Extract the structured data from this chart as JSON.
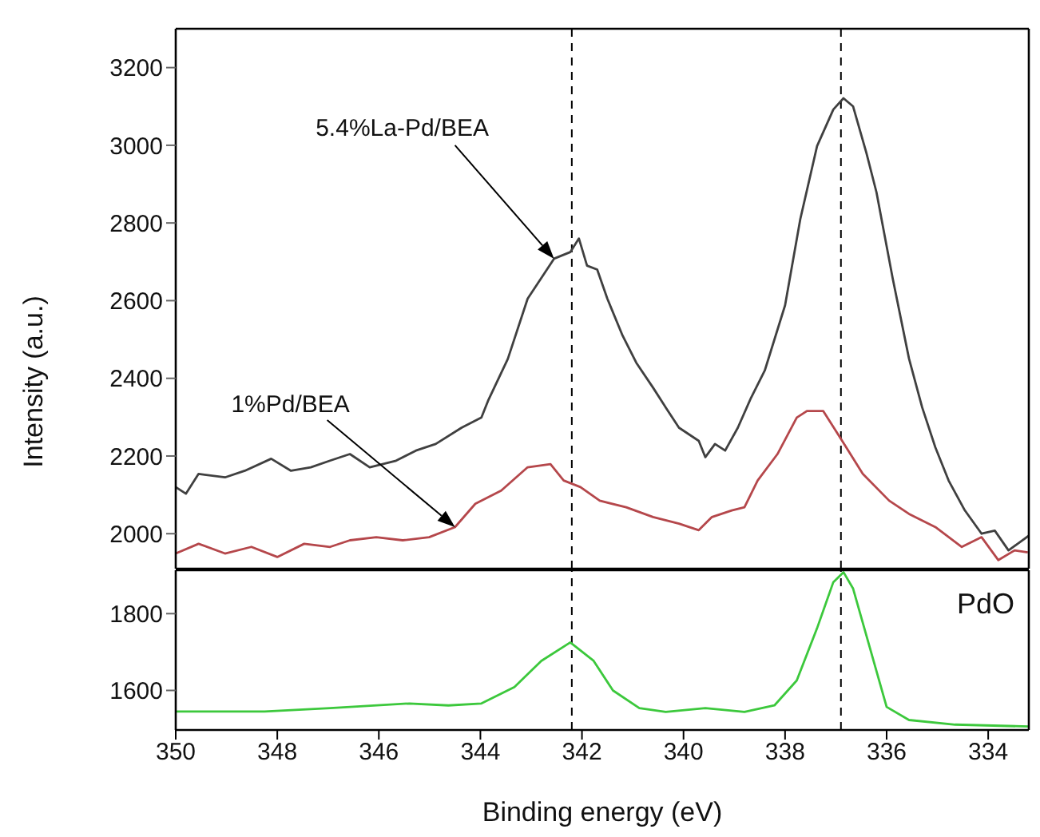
{
  "chart_data": [
    {
      "type": "line",
      "ylabel": "Intensity (a.u.)",
      "xlim": [
        350,
        333.2
      ],
      "xticks": [
        350,
        348,
        346,
        344,
        342,
        340,
        338,
        336,
        334
      ],
      "ylim": [
        1910,
        3300
      ],
      "yticks": [
        2000,
        2200,
        2400,
        2600,
        2800,
        3000,
        3200
      ],
      "tick_labels": "y",
      "series": [
        {
          "color": "#404040",
          "x": [
            350,
            349.8,
            349.55,
            349.03,
            348.64,
            348.12,
            347.73,
            347.34,
            346.96,
            346.57,
            346.18,
            345.66,
            345.27,
            344.88,
            344.37,
            343.98,
            343.85,
            343.46,
            343.07,
            342.55,
            342.23,
            342.06,
            341.9,
            341.7,
            341.5,
            341.2,
            340.93,
            340.6,
            340.35,
            340.09,
            339.7,
            339.57,
            339.38,
            339.18,
            338.93,
            338.67,
            338.4,
            338.0,
            337.7,
            337.37,
            337.05,
            336.85,
            336.66,
            336.4,
            336.2,
            335.88,
            335.56,
            335.3,
            335.04,
            334.78,
            334.46,
            334.13,
            333.87,
            333.6,
            333.42,
            333.2
          ],
          "values": [
            2120,
            2103,
            2154,
            2145,
            2162,
            2193,
            2162,
            2171,
            2188,
            2205,
            2171,
            2188,
            2214,
            2231,
            2273,
            2299,
            2342,
            2450,
            2605,
            2708,
            2725,
            2760,
            2690,
            2680,
            2605,
            2510,
            2440,
            2376,
            2325,
            2273,
            2239,
            2197,
            2231,
            2214,
            2273,
            2350,
            2420,
            2588,
            2810,
            2998,
            3092,
            3121,
            3100,
            2981,
            2879,
            2657,
            2451,
            2325,
            2222,
            2137,
            2060,
            2000,
            2008,
            1957,
            1974,
            1995
          ]
        },
        {
          "color": "#b5474b",
          "x": [
            350,
            349.55,
            349.03,
            348.51,
            348.0,
            347.47,
            346.96,
            346.57,
            346.05,
            345.53,
            345.01,
            344.5,
            344.1,
            343.59,
            343.07,
            342.62,
            342.36,
            342.03,
            341.65,
            341.13,
            340.6,
            340.09,
            339.7,
            339.44,
            339.05,
            338.8,
            338.54,
            338.15,
            337.77,
            337.57,
            337.25,
            336.92,
            336.47,
            335.95,
            335.56,
            335.04,
            334.52,
            334.13,
            333.8,
            333.48,
            333.22
          ],
          "values": [
            1949,
            1974,
            1949,
            1966,
            1940,
            1974,
            1966,
            1983,
            1991,
            1983,
            1991,
            2017,
            2077,
            2111,
            2171,
            2179,
            2137,
            2120,
            2085,
            2068,
            2043,
            2026,
            2009,
            2043,
            2060,
            2068,
            2137,
            2205,
            2299,
            2316,
            2316,
            2248,
            2154,
            2085,
            2051,
            2017,
            1966,
            1991,
            1932,
            1957,
            1952
          ]
        }
      ],
      "ref_lines": [
        {
          "axis": "x",
          "value": 342.2,
          "line_style": "dashed"
        },
        {
          "axis": "x",
          "value": 336.9,
          "line_style": "dashed"
        }
      ],
      "annotations": [
        "5.4%La-Pd/BEA",
        "1%Pd/BEA"
      ]
    },
    {
      "type": "line",
      "xlabel": "Binding energy (eV)",
      "xlim": [
        350,
        333.2
      ],
      "xticks": [
        350,
        348,
        346,
        344,
        342,
        340,
        338,
        336,
        334
      ],
      "ylim": [
        1497,
        1913
      ],
      "yticks": [
        1600,
        1800
      ],
      "series": [
        {
          "name": "PdO",
          "color": "#3cc83c",
          "x": [
            350,
            348.25,
            346.96,
            345.4,
            344.63,
            343.98,
            343.33,
            342.8,
            342.23,
            341.77,
            341.39,
            340.87,
            340.35,
            339.57,
            338.8,
            338.21,
            337.77,
            337.37,
            337.05,
            336.85,
            336.66,
            336.33,
            336.0,
            335.56,
            334.65,
            333.2
          ],
          "values": [
            1545,
            1545,
            1554,
            1566,
            1561,
            1566,
            1609,
            1677,
            1725,
            1677,
            1600,
            1554,
            1544,
            1554,
            1544,
            1561,
            1626,
            1762,
            1882,
            1908,
            1865,
            1711,
            1557,
            1523,
            1511,
            1506
          ]
        }
      ],
      "ref_lines": [
        {
          "axis": "x",
          "value": 342.2,
          "line_style": "dashed"
        },
        {
          "axis": "x",
          "value": 336.9,
          "line_style": "dashed"
        }
      ]
    }
  ]
}
